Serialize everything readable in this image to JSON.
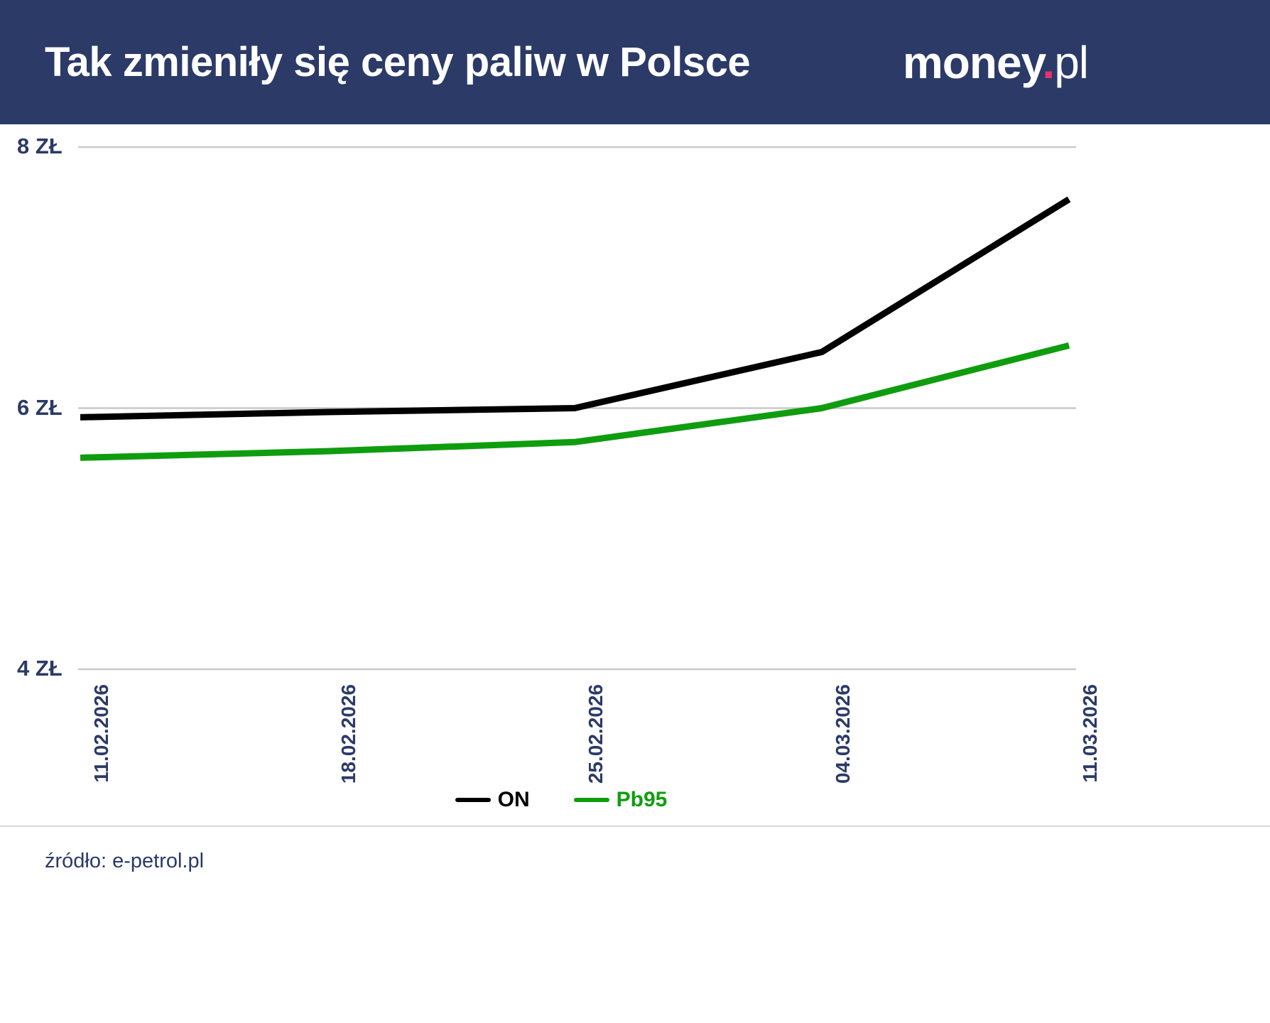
{
  "header": {
    "title": "Tak zmieniły się ceny paliw w Polsce",
    "logo": {
      "money": "money",
      "dot": ".",
      "pl": "pl"
    }
  },
  "chart_data": {
    "type": "line",
    "title": "Tak zmieniły się ceny paliw w Polsce",
    "x": [
      "11.02.2026",
      "18.02.2026",
      "25.02.2026",
      "04.03.2026",
      "11.03.2026"
    ],
    "series": [
      {
        "name": "ON",
        "color": "#000000",
        "values": [
          5.93,
          5.97,
          6.0,
          6.43,
          7.6
        ]
      },
      {
        "name": "Pb95",
        "color": "#0f9d0f",
        "values": [
          5.62,
          5.67,
          5.74,
          6.0,
          6.48
        ]
      }
    ],
    "ylim": [
      4,
      8
    ],
    "yticks": [
      {
        "value": 8,
        "label": "8 ZŁ"
      },
      {
        "value": 6,
        "label": "6 ZŁ"
      },
      {
        "value": 4,
        "label": "4 ZŁ"
      }
    ],
    "grid": "horizontal",
    "legend_position": "bottom-center",
    "source": "e-petrol.pl"
  },
  "footer": {
    "source_label": "źródło: e-petrol.pl"
  },
  "colors": {
    "header_bg": "#2b3a67",
    "navy_text": "#2b3a67",
    "green": "#0f9d0f",
    "gridline": "#c9c9c9",
    "logo_dot_pink": "#e8326d",
    "divider": "#d8d8d8"
  }
}
